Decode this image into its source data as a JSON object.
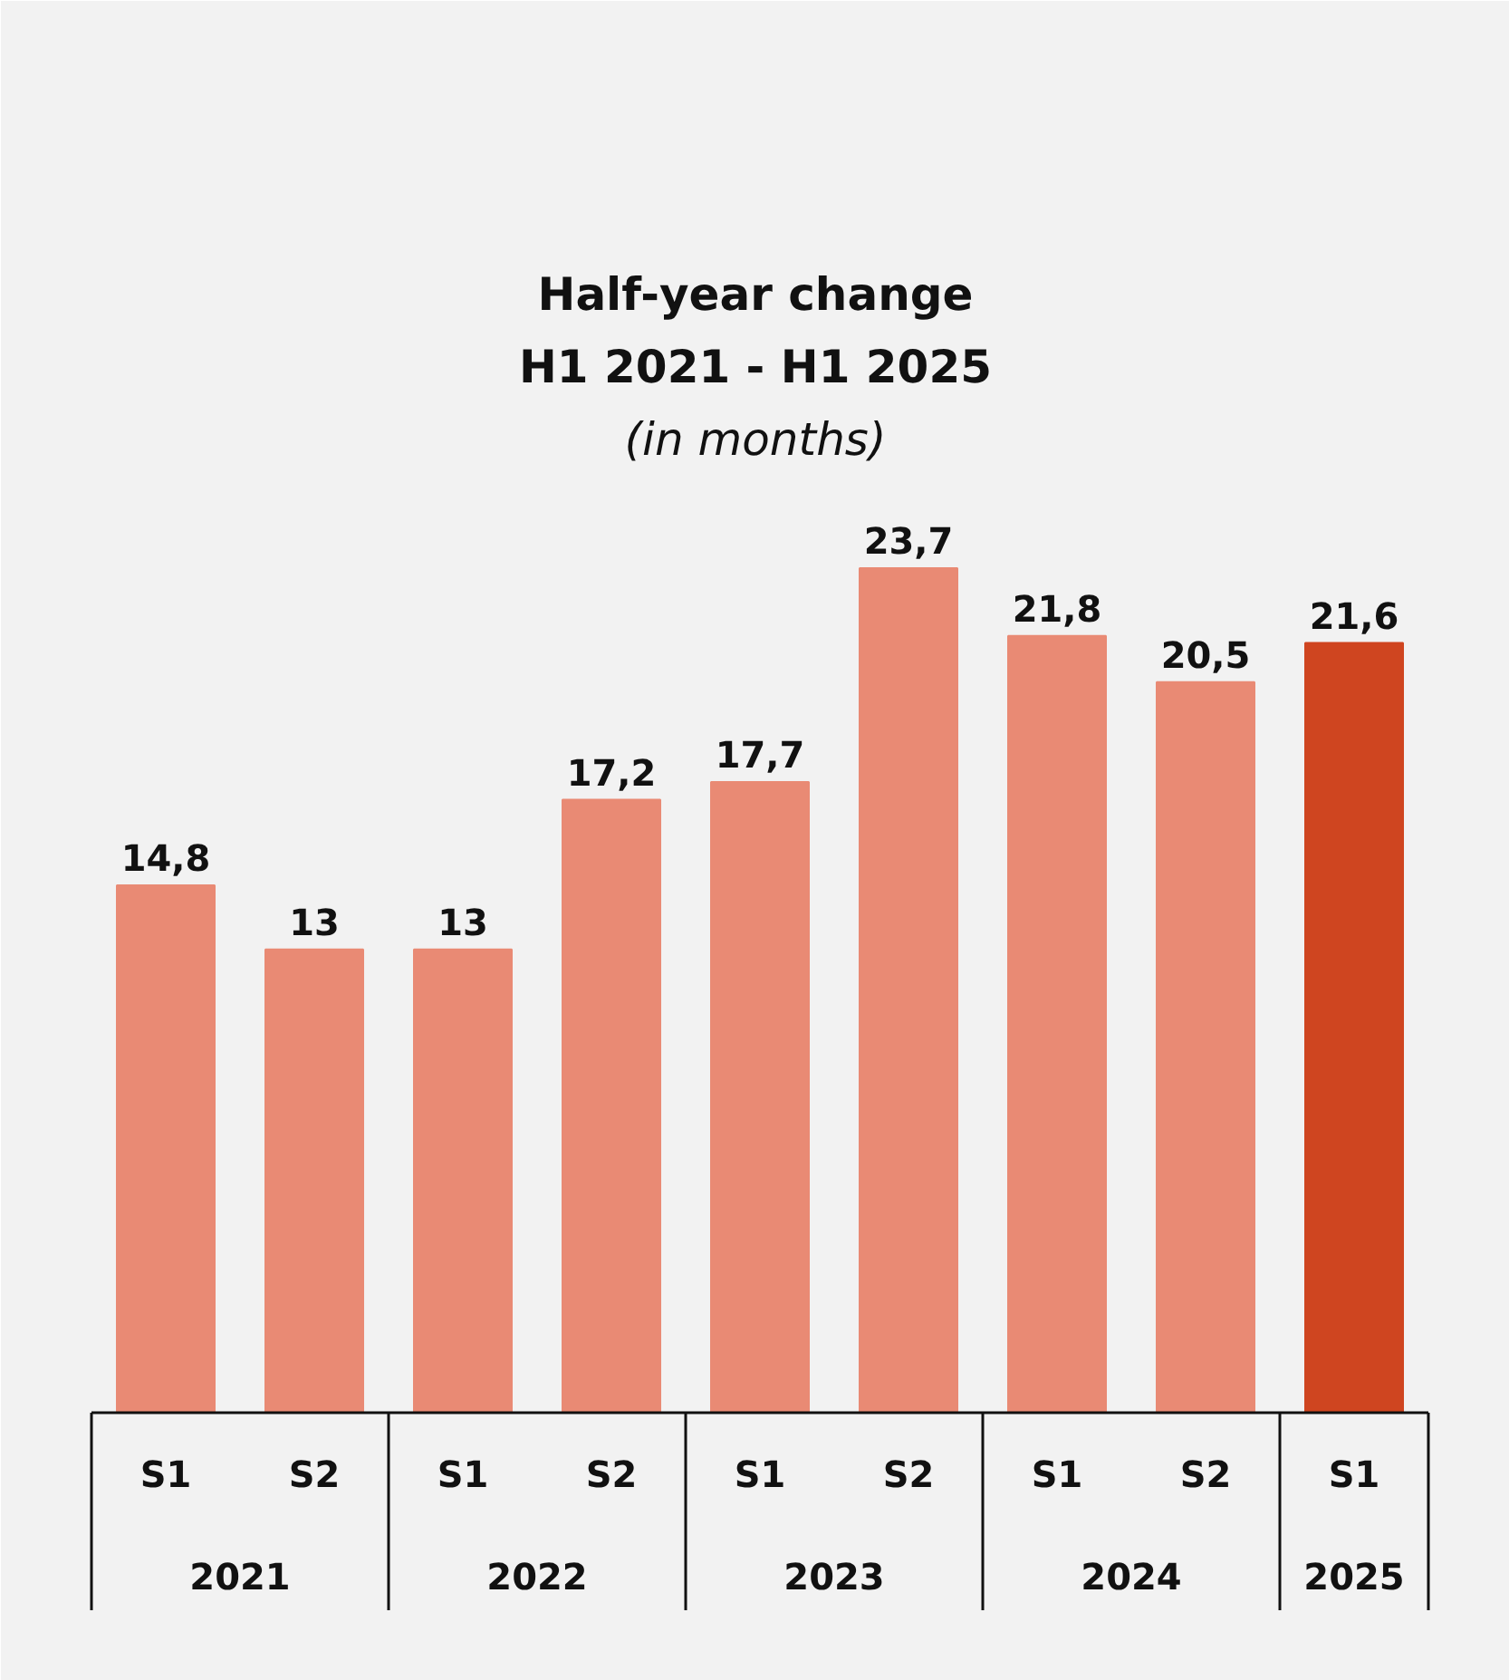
{
  "chart_data": {
    "type": "bar",
    "title": "Half-year change\nH1 2021 - H1 2025",
    "subtitle": "(in months)",
    "categories": [
      "S1",
      "S2",
      "S1",
      "S2",
      "S1",
      "S2",
      "S1",
      "S2",
      "S1"
    ],
    "values": [
      14.8,
      13,
      13,
      17.2,
      17.7,
      23.7,
      21.8,
      20.5,
      21.6
    ],
    "value_labels": [
      "14,8",
      "13",
      "13",
      "17,2",
      "17,7",
      "23,7",
      "21,8",
      "20,5",
      "21,6"
    ],
    "colors": [
      "#e98a74",
      "#e98a74",
      "#e98a74",
      "#e98a74",
      "#e98a74",
      "#e98a74",
      "#e98a74",
      "#e98a74",
      "#cf4520"
    ],
    "annotations": [
      "2021",
      "2022",
      "2023",
      "2024",
      "2025"
    ],
    "grid": false
  }
}
